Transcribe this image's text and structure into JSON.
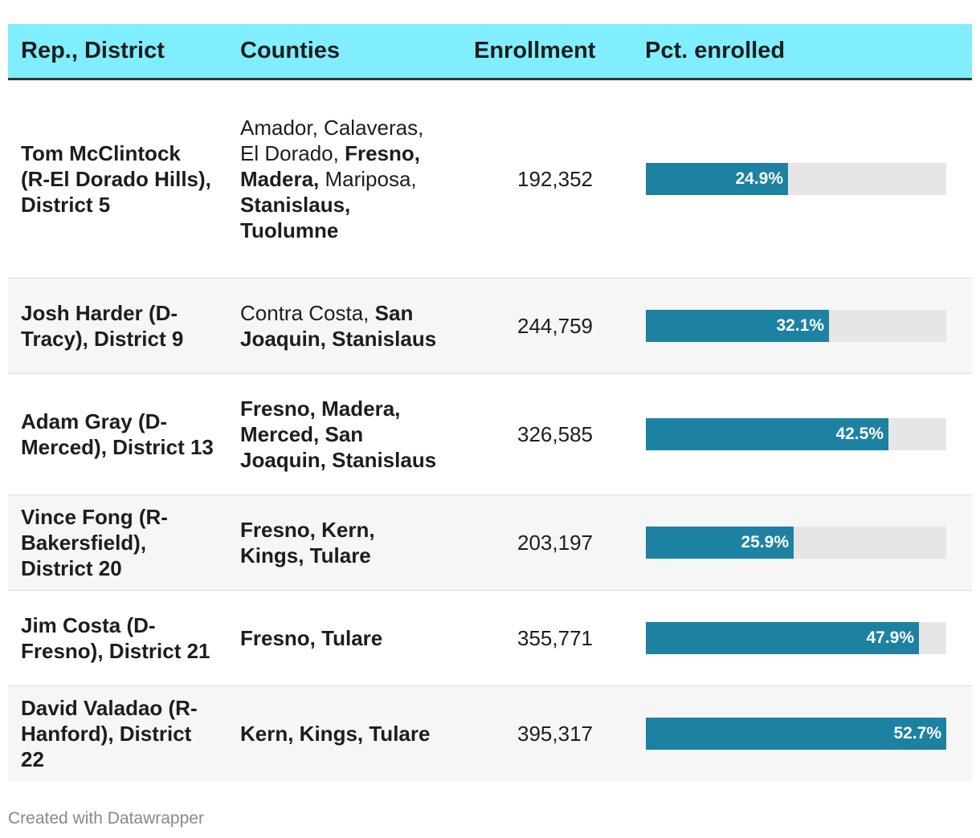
{
  "chart_data": {
    "type": "table",
    "columns": [
      "Rep., District",
      "Counties",
      "Enrollment",
      "Pct. enrolled"
    ],
    "rows": [
      {
        "rep": "Tom McClintock (R-El Dorado Hills), District 5",
        "counties": [
          {
            "t": "Amador, Calaveras, El Dorado, ",
            "bold": false
          },
          {
            "t": "Fresno, Madera, ",
            "bold": true
          },
          {
            "t": "Mariposa, ",
            "bold": false
          },
          {
            "t": "Stanislaus, Tuolumne",
            "bold": true
          }
        ],
        "enrollment": "192,352",
        "pct": 24.9,
        "pct_label": "24.9%"
      },
      {
        "rep": "Josh Harder (D-Tracy), District 9",
        "counties": [
          {
            "t": "Contra Costa, ",
            "bold": false
          },
          {
            "t": "San Joaquin, Stanislaus",
            "bold": true
          }
        ],
        "enrollment": "244,759",
        "pct": 32.1,
        "pct_label": "32.1%"
      },
      {
        "rep": "Adam Gray (D-Merced), District 13",
        "counties": [
          {
            "t": "Fresno, Madera, Merced, San Joaquin, Stanislaus",
            "bold": true
          }
        ],
        "enrollment": "326,585",
        "pct": 42.5,
        "pct_label": "42.5%"
      },
      {
        "rep": "Vince Fong (R-Bakersfield), District 20",
        "counties": [
          {
            "t": "Fresno, Kern, Kings, Tulare",
            "bold": true
          }
        ],
        "enrollment": "203,197",
        "pct": 25.9,
        "pct_label": "25.9%"
      },
      {
        "rep": "Jim Costa (D-Fresno), District 21",
        "counties": [
          {
            "t": "Fresno, Tulare",
            "bold": true
          }
        ],
        "enrollment": "355,771",
        "pct": 47.9,
        "pct_label": "47.9%"
      },
      {
        "rep": "David Valadao (R-Hanford), District 22",
        "counties": [
          {
            "t": "Kern, Kings, Tulare",
            "bold": true
          }
        ],
        "enrollment": "395,317",
        "pct": 52.7,
        "pct_label": "52.7%"
      }
    ],
    "bar_max": 52.7,
    "colors": {
      "header_bg": "#80eefe",
      "bar": "#1d81a2",
      "track": "#e6e6e6"
    }
  },
  "footer": "Created with Datawrapper"
}
